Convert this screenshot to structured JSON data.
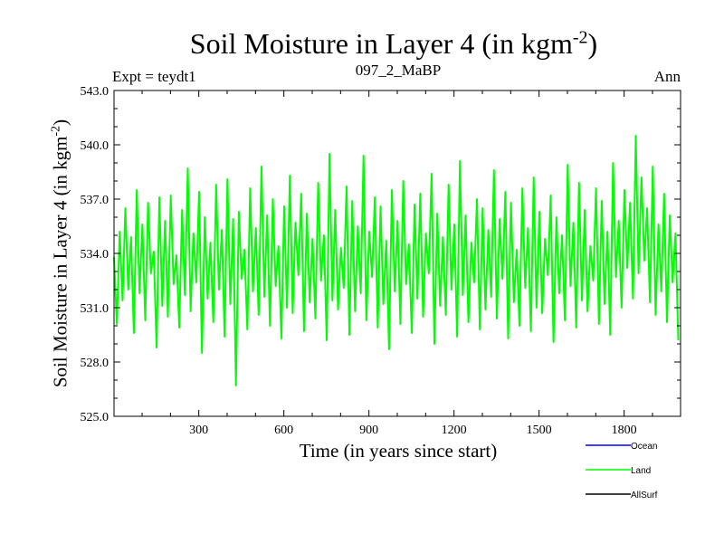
{
  "chart_data": {
    "type": "line",
    "title": "Soil Moisture in Layer 4 (in kgm",
    "title_sup": "-2",
    "title_end": ")",
    "subtitle_left": "Expt = teydt1",
    "subtitle_center": "097_2_MaBP",
    "subtitle_right": "Ann",
    "xlabel": "Time (in years since start)",
    "ylabel": "Soil Moisture in Layer 4 (in kgm",
    "ylabel_sup": "-2",
    "ylabel_end": ")",
    "xlim": [
      1,
      1999
    ],
    "ylim": [
      525.0,
      543.0
    ],
    "x_ticks": [
      300,
      600,
      900,
      1200,
      1500,
      1800
    ],
    "x_tick_labels": [
      "300",
      "600",
      "900",
      "1200",
      "1500",
      "1800"
    ],
    "y_ticks": [
      525,
      528,
      531,
      534,
      537,
      540,
      543
    ],
    "y_tick_labels": [
      "525.0",
      "528.0",
      "531.0",
      "534.0",
      "537.0",
      "540.0",
      "543.0"
    ],
    "legend": [
      {
        "name": "Ocean",
        "color": "#0000ff"
      },
      {
        "name": "Land",
        "color": "#00ff00"
      },
      {
        "name": "AllSurf",
        "color": "#000000"
      }
    ],
    "series": [
      {
        "name": "Land",
        "color": "#00ff00",
        "x_start": 1,
        "x_step": 10,
        "values": [
          533.8,
          530.1,
          535.2,
          531.4,
          536.5,
          532.0,
          534.9,
          529.6,
          537.5,
          531.8,
          535.6,
          530.3,
          536.8,
          532.9,
          534.1,
          528.8,
          537.1,
          531.1,
          535.8,
          530.5,
          537.2,
          532.3,
          533.9,
          529.9,
          536.4,
          531.7,
          538.7,
          530.8,
          535.1,
          532.4,
          537.4,
          528.5,
          536.0,
          531.5,
          534.6,
          530.2,
          537.8,
          532.0,
          535.3,
          529.4,
          538.1,
          531.2,
          535.9,
          526.7,
          536.3,
          532.6,
          534.2,
          529.8,
          537.6,
          531.9,
          535.4,
          530.6,
          538.8,
          531.6,
          536.1,
          530.0,
          537.0,
          532.2,
          534.4,
          529.3,
          536.6,
          531.0,
          538.3,
          530.7,
          535.7,
          532.8,
          537.3,
          529.7,
          536.2,
          531.3,
          534.8,
          530.4,
          537.9,
          532.5,
          535.0,
          529.2,
          539.5,
          531.4,
          536.4,
          530.9,
          534.3,
          532.1,
          537.7,
          529.5,
          536.9,
          530.8,
          535.5,
          531.8,
          539.4,
          530.3,
          535.2,
          532.7,
          537.1,
          529.9,
          536.6,
          531.2,
          534.7,
          528.7,
          537.5,
          531.9,
          535.8,
          530.1,
          538.0,
          532.3,
          534.5,
          529.6,
          536.7,
          531.5,
          537.3,
          530.5,
          535.1,
          532.9,
          538.4,
          529.0,
          536.2,
          531.1,
          534.9,
          530.6,
          537.8,
          532.0,
          535.6,
          529.4,
          539.1,
          531.7,
          536.1,
          530.2,
          534.6,
          532.4,
          537.0,
          529.8,
          536.5,
          530.9,
          535.3,
          531.6,
          538.6,
          530.4,
          535.9,
          532.6,
          537.4,
          529.3,
          536.8,
          531.3,
          534.2,
          530.0,
          537.6,
          532.1,
          535.4,
          529.7,
          538.2,
          531.0,
          536.3,
          530.7,
          534.8,
          532.8,
          537.2,
          529.1,
          536.0,
          531.8,
          535.0,
          530.3,
          538.9,
          532.2,
          535.7,
          529.9,
          537.9,
          531.4,
          536.4,
          530.8,
          534.4,
          532.5,
          537.6,
          530.1,
          536.9,
          531.2,
          535.2,
          529.5,
          539.0,
          532.7,
          535.8,
          531.0,
          537.5,
          533.2,
          536.8,
          531.5,
          540.5,
          532.9,
          538.2,
          533.6,
          536.5,
          531.3,
          538.8,
          530.6,
          535.6,
          531.9,
          537.3,
          530.2,
          536.1,
          532.4,
          535.1,
          529.2
        ]
      }
    ]
  }
}
